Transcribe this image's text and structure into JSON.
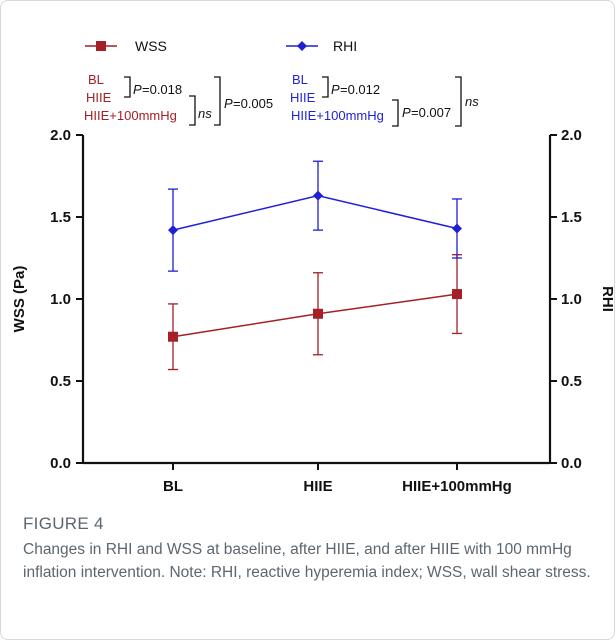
{
  "colors": {
    "wss": "#a51f26",
    "rhi": "#1f1fd6",
    "axis": "#111111",
    "annotation_text": "#111111"
  },
  "chart_data": {
    "type": "line",
    "categories": [
      "BL",
      "HIIE",
      "HIIE+100mmHg"
    ],
    "series": [
      {
        "name": "WSS",
        "axis": "left",
        "marker": "square",
        "color": "#a51f26",
        "values": [
          0.77,
          0.91,
          1.03
        ],
        "errors": [
          0.2,
          0.25,
          0.24
        ]
      },
      {
        "name": "RHI",
        "axis": "right",
        "marker": "diamond",
        "color": "#1f1fd6",
        "values": [
          1.42,
          1.63,
          1.43
        ],
        "errors": [
          0.25,
          0.21,
          0.18
        ]
      }
    ],
    "ylabel_left": "WSS (Pa)",
    "ylabel_right": "RHI",
    "ylim": [
      0,
      2.0
    ],
    "yticks": [
      "0.0",
      "0.5",
      "1.0",
      "1.5",
      "2.0"
    ],
    "legend_placement": "top",
    "annotations": {
      "wss": {
        "labels": [
          "BL",
          "HIIE",
          "HIIE+100mmHg"
        ],
        "p1": "=0.018",
        "p2": "=0.005",
        "ns": "ns"
      },
      "rhi": {
        "labels": [
          "BL",
          "HIIE",
          "HIIE+100mmHg"
        ],
        "p1": "=0.012",
        "p2": "=0.007",
        "ns": "ns"
      },
      "p_symbol": "P"
    }
  },
  "caption": {
    "label": "FIGURE 4",
    "text": "Changes in RHI and WSS at baseline, after HIIE, and after HIIE with 100 mmHg inflation intervention. Note: RHI, reactive hyperemia index; WSS, wall shear stress."
  }
}
